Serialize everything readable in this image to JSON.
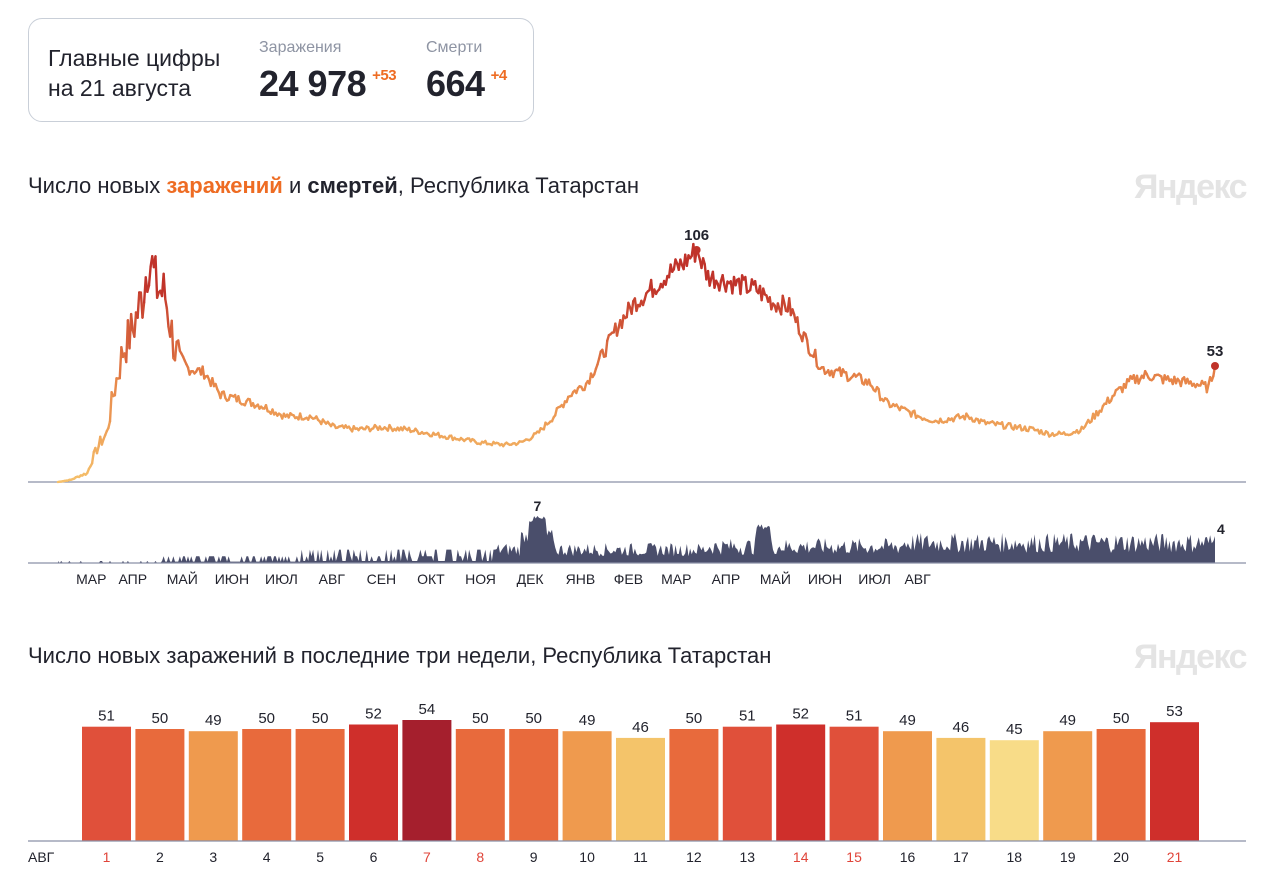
{
  "summary": {
    "heading_line1": "Главные цифры",
    "heading_line2": "на 21 августа",
    "infections": {
      "label": "Заражения",
      "value": "24 978",
      "delta": "+53"
    },
    "deaths": {
      "label": "Смерти",
      "value": "664",
      "delta": "+4"
    }
  },
  "chart1": {
    "title_prefix": "Число новых ",
    "title_inf": "заражений",
    "title_mid": " и ",
    "title_dead": "смертей",
    "title_suffix": ", Республика Татарстан",
    "brand": "Яндекс"
  },
  "chart2": {
    "title": "Число новых заражений в последние три недели, Республика Татарстан",
    "brand": "Яндекс"
  },
  "colors": {
    "inf_low": "#f5c06b",
    "inf_mid": "#e8884a",
    "inf_high": "#c0332a",
    "deaths": "#4a4e6b",
    "axis": "#8a90a6",
    "bar_scale": [
      "#f8dc88",
      "#f4c46a",
      "#ef9a4e",
      "#e86a3c",
      "#e0503a",
      "#cf2f2b",
      "#a51f2d"
    ],
    "weekend": "#e0453a"
  },
  "chart_data": [
    {
      "type": "line",
      "series_kind": "infections",
      "x_months": [
        "МАР",
        "АПР",
        "МАЙ",
        "ИЮН",
        "ИЮЛ",
        "АВГ",
        "СЕН",
        "ОКТ",
        "НОЯ",
        "ДЕК",
        "ЯНВ",
        "ФЕВ",
        "МАР",
        "АПР",
        "МАЙ",
        "ИЮН",
        "ИЮЛ",
        "АВГ"
      ],
      "anchors": [
        [
          0,
          0
        ],
        [
          8,
          1
        ],
        [
          14,
          3
        ],
        [
          18,
          4
        ],
        [
          22,
          12
        ],
        [
          26,
          18
        ],
        [
          30,
          22
        ],
        [
          34,
          40
        ],
        [
          40,
          60
        ],
        [
          46,
          70
        ],
        [
          52,
          85
        ],
        [
          56,
          105
        ],
        [
          60,
          90
        ],
        [
          66,
          85
        ],
        [
          72,
          60
        ],
        [
          80,
          52
        ],
        [
          90,
          50
        ],
        [
          100,
          40
        ],
        [
          110,
          38
        ],
        [
          125,
          35
        ],
        [
          140,
          30
        ],
        [
          155,
          30
        ],
        [
          170,
          25
        ],
        [
          185,
          24
        ],
        [
          200,
          25
        ],
        [
          215,
          24
        ],
        [
          230,
          22
        ],
        [
          245,
          20
        ],
        [
          260,
          18
        ],
        [
          275,
          17
        ],
        [
          285,
          18
        ],
        [
          295,
          22
        ],
        [
          305,
          30
        ],
        [
          315,
          40
        ],
        [
          325,
          45
        ],
        [
          335,
          58
        ],
        [
          345,
          72
        ],
        [
          355,
          82
        ],
        [
          365,
          88
        ],
        [
          375,
          95
        ],
        [
          385,
          100
        ],
        [
          393,
          106
        ],
        [
          400,
          94
        ],
        [
          410,
          92
        ],
        [
          420,
          90
        ],
        [
          430,
          88
        ],
        [
          440,
          82
        ],
        [
          450,
          80
        ],
        [
          460,
          65
        ],
        [
          470,
          52
        ],
        [
          480,
          50
        ],
        [
          490,
          48
        ],
        [
          500,
          45
        ],
        [
          510,
          36
        ],
        [
          520,
          33
        ],
        [
          530,
          30
        ],
        [
          540,
          28
        ],
        [
          550,
          29
        ],
        [
          560,
          30
        ],
        [
          570,
          27
        ],
        [
          580,
          26
        ],
        [
          590,
          25
        ],
        [
          600,
          24
        ],
        [
          610,
          22
        ],
        [
          620,
          22
        ],
        [
          630,
          24
        ],
        [
          640,
          32
        ],
        [
          650,
          40
        ],
        [
          660,
          46
        ],
        [
          670,
          49
        ],
        [
          680,
          47
        ],
        [
          690,
          46
        ],
        [
          700,
          45
        ],
        [
          708,
          43
        ],
        [
          712,
          53
        ]
      ],
      "peak_label": "106",
      "last_label": "53"
    },
    {
      "type": "area",
      "series_kind": "deaths",
      "max_label": "7",
      "last_label": "4"
    },
    {
      "type": "bar",
      "x_label": "АВГ",
      "categories": [
        "1",
        "2",
        "3",
        "4",
        "5",
        "6",
        "7",
        "8",
        "9",
        "10",
        "11",
        "12",
        "13",
        "14",
        "15",
        "16",
        "17",
        "18",
        "19",
        "20",
        "21"
      ],
      "values": [
        51,
        50,
        49,
        50,
        50,
        52,
        54,
        50,
        50,
        49,
        46,
        50,
        51,
        52,
        51,
        49,
        46,
        45,
        49,
        50,
        53
      ],
      "highlighted_days": [
        "1",
        "7",
        "8",
        "14",
        "15",
        "21"
      ]
    }
  ]
}
